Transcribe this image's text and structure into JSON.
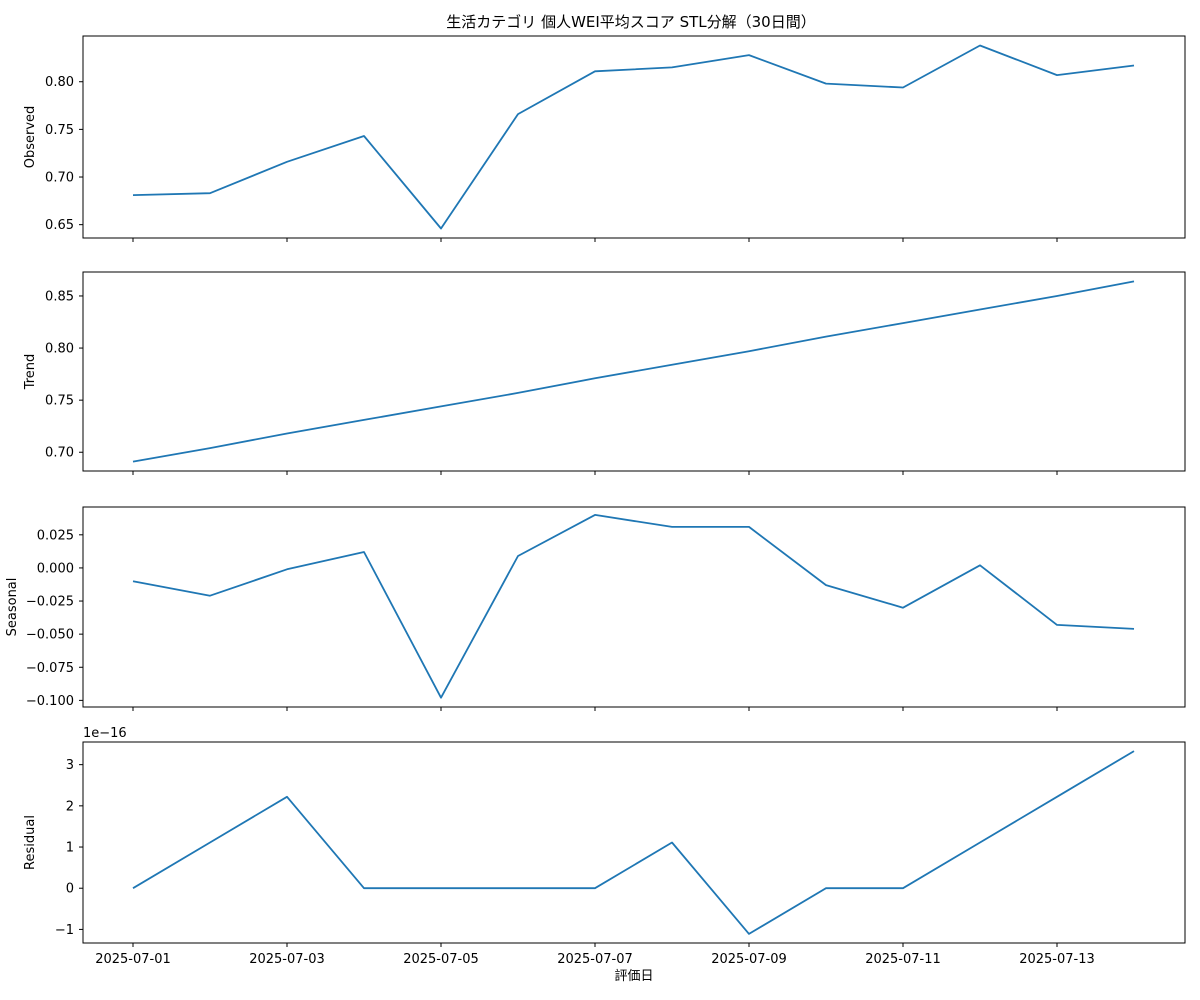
{
  "chart_data": {
    "type": "line",
    "title": "生活カテゴリ 個人WEI平均スコア STL分解（30日間）",
    "xlabel": "評価日",
    "x": [
      "2025-07-01",
      "2025-07-02",
      "2025-07-03",
      "2025-07-04",
      "2025-07-05",
      "2025-07-06",
      "2025-07-07",
      "2025-07-08",
      "2025-07-09",
      "2025-07-10",
      "2025-07-11",
      "2025-07-12",
      "2025-07-13",
      "2025-07-14"
    ],
    "xticks": [
      "2025-07-01",
      "2025-07-03",
      "2025-07-05",
      "2025-07-07",
      "2025-07-09",
      "2025-07-11",
      "2025-07-13"
    ],
    "line_color": "#1f77b4",
    "grid": false,
    "panels": [
      {
        "name": "Observed",
        "ylabel": "Observed",
        "values": [
          0.681,
          0.683,
          0.716,
          0.743,
          0.646,
          0.766,
          0.811,
          0.815,
          0.828,
          0.798,
          0.794,
          0.838,
          0.807,
          0.817
        ],
        "ylim": [
          0.636,
          0.848
        ],
        "yticks": [
          0.65,
          0.7,
          0.75,
          0.8
        ],
        "yticklabels": [
          "0.65",
          "0.70",
          "0.75",
          "0.80"
        ],
        "offset": ""
      },
      {
        "name": "Trend",
        "ylabel": "Trend",
        "values": [
          0.691,
          0.704,
          0.718,
          0.731,
          0.744,
          0.757,
          0.771,
          0.784,
          0.797,
          0.811,
          0.824,
          0.837,
          0.85,
          0.864
        ],
        "ylim": [
          0.682,
          0.873
        ],
        "yticks": [
          0.7,
          0.75,
          0.8,
          0.85
        ],
        "yticklabels": [
          "0.70",
          "0.75",
          "0.80",
          "0.85"
        ],
        "offset": ""
      },
      {
        "name": "Seasonal",
        "ylabel": "Seasonal",
        "values": [
          -0.01,
          -0.021,
          -0.001,
          0.012,
          -0.098,
          0.009,
          0.04,
          0.031,
          0.031,
          -0.013,
          -0.03,
          0.002,
          -0.043,
          -0.046
        ],
        "ylim": [
          -0.105,
          0.046
        ],
        "yticks": [
          -0.1,
          -0.075,
          -0.05,
          -0.025,
          0.0,
          0.025
        ],
        "yticklabels": [
          "−0.100",
          "−0.075",
          "−0.050",
          "−0.025",
          "0.000",
          "0.025"
        ],
        "offset": ""
      },
      {
        "name": "Residual",
        "ylabel": "Residual",
        "values": [
          0,
          1.11,
          2.22,
          0,
          0,
          0,
          0,
          1.11,
          -1.11,
          0,
          0,
          1.11,
          2.22,
          3.33
        ],
        "ylim": [
          -1.33,
          3.55
        ],
        "yticks": [
          -1,
          0,
          1,
          2,
          3
        ],
        "yticklabels": [
          "−1",
          "0",
          "1",
          "2",
          "3"
        ],
        "offset": "1e−16"
      }
    ]
  }
}
